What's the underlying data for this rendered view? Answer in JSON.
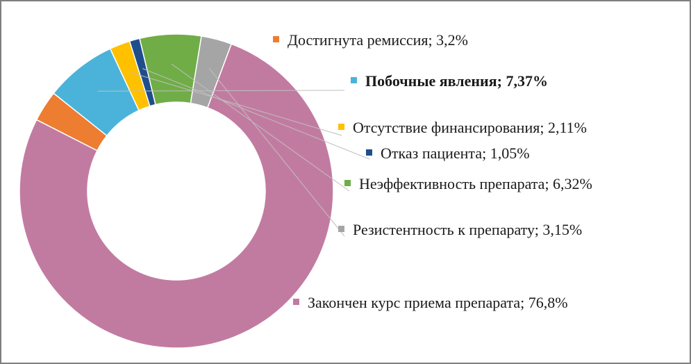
{
  "chart_data": {
    "type": "pie",
    "style": "donut",
    "legend": "none",
    "slices": [
      {
        "label": "Достигнута ремиссия; 3,2%",
        "value": 3.2,
        "color": "#ed7d31",
        "bold": false
      },
      {
        "label": "Побочные явления; 7,37%",
        "value": 7.37,
        "color": "#4bb3d9",
        "bold": true
      },
      {
        "label": "Отсутствие финансирования; 2,11%",
        "value": 2.11,
        "color": "#ffc000",
        "bold": false
      },
      {
        "label": "Отказ пациента; 1,05%",
        "value": 1.05,
        "color": "#1f4e8c",
        "bold": false
      },
      {
        "label": "Неэффективность препарата; 6,32%",
        "value": 6.32,
        "color": "#70ad47",
        "bold": false
      },
      {
        "label": "Резистентность к препарату; 3,15%",
        "value": 3.15,
        "color": "#a5a5a5",
        "bold": false
      },
      {
        "label": "Закончен курс приема препарата; 76,8%",
        "value": 76.8,
        "color": "#c27ba0",
        "bold": false
      }
    ]
  }
}
